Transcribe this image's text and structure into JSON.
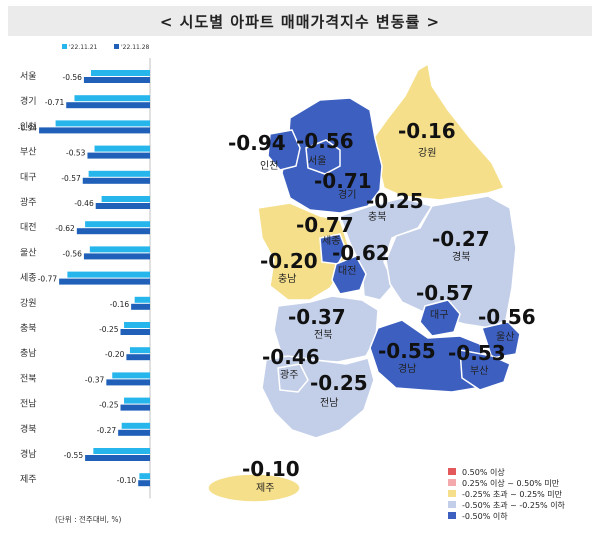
{
  "title": "< 시도별 아파트 매매가격지수 변동률 >",
  "chart_data": {
    "type": "bar",
    "orientation": "horizontal",
    "categories": [
      "서울",
      "경기",
      "인천",
      "부산",
      "대구",
      "광주",
      "대전",
      "울산",
      "세종",
      "강원",
      "충북",
      "충남",
      "전북",
      "전남",
      "경북",
      "경남",
      "제주"
    ],
    "series": [
      {
        "name": "'22.11.21",
        "color": "#27b6ec",
        "values": [
          -0.5,
          -0.64,
          -0.8,
          -0.47,
          -0.52,
          -0.41,
          -0.55,
          -0.51,
          -0.7,
          -0.13,
          -0.22,
          -0.17,
          -0.32,
          -0.22,
          -0.24,
          -0.48,
          -0.09
        ]
      },
      {
        "name": "'22.11.28",
        "color": "#2060b8",
        "values": [
          -0.56,
          -0.71,
          -0.94,
          -0.53,
          -0.57,
          -0.46,
          -0.62,
          -0.56,
          -0.77,
          -0.16,
          -0.25,
          -0.2,
          -0.37,
          -0.25,
          -0.27,
          -0.55,
          -0.1
        ]
      }
    ],
    "data_labels": [
      "-0.56",
      "-0.71",
      "-0.94",
      "-0.53",
      "-0.57",
      "-0.46",
      "-0.62",
      "-0.56",
      "-0.77",
      "-0.16",
      "-0.25",
      "-0.20",
      "-0.37",
      "-0.25",
      "-0.27",
      "-0.55",
      "-0.10"
    ],
    "xlim": [
      -1.0,
      0
    ],
    "footnote": "(단위 : 전주대비, %)"
  },
  "map": {
    "regions": [
      {
        "id": "seoul",
        "name": "서울",
        "value": "-0.56",
        "color": "#3c5fc0"
      },
      {
        "id": "incheon",
        "name": "인천",
        "value": "-0.94",
        "color": "#3c5fc0"
      },
      {
        "id": "gyeonggi",
        "name": "경기",
        "value": "-0.71",
        "color": "#3c5fc0"
      },
      {
        "id": "gangwon",
        "name": "강원",
        "value": "-0.16",
        "color": "#f5df8a"
      },
      {
        "id": "chungbuk",
        "name": "충북",
        "value": "-0.25",
        "color": "#c3cfe9"
      },
      {
        "id": "sejong",
        "name": "세종",
        "value": "-0.77",
        "color": "#3c5fc0"
      },
      {
        "id": "chungnam",
        "name": "충남",
        "value": "-0.20",
        "color": "#f5df8a"
      },
      {
        "id": "daejeon",
        "name": "대전",
        "value": "-0.62",
        "color": "#3c5fc0"
      },
      {
        "id": "gyeongbuk",
        "name": "경북",
        "value": "-0.27",
        "color": "#c3cfe9"
      },
      {
        "id": "daegu",
        "name": "대구",
        "value": "-0.57",
        "color": "#3c5fc0"
      },
      {
        "id": "jeonbuk",
        "name": "전북",
        "value": "-0.37",
        "color": "#c3cfe9"
      },
      {
        "id": "ulsan",
        "name": "울산",
        "value": "-0.56",
        "color": "#3c5fc0"
      },
      {
        "id": "gyeongnam",
        "name": "경남",
        "value": "-0.55",
        "color": "#3c5fc0"
      },
      {
        "id": "busan",
        "name": "부산",
        "value": "-0.53",
        "color": "#3c5fc0"
      },
      {
        "id": "gwangju",
        "name": "광주",
        "value": "-0.46",
        "color": "#c3cfe9"
      },
      {
        "id": "jeonnam",
        "name": "전남",
        "value": "-0.25",
        "color": "#c3cfe9"
      },
      {
        "id": "jeju",
        "name": "제주",
        "value": "-0.10",
        "color": "#f5df8a"
      }
    ],
    "legend": [
      {
        "label": "0.50% 이상",
        "color": "#e2585b"
      },
      {
        "label": "0.25% 이상 ~ 0.50% 미만",
        "color": "#f4a9ad"
      },
      {
        "label": "-0.25% 초과 ~ 0.25% 미만",
        "color": "#f5df8a"
      },
      {
        "label": "-0.50% 초과 ~ -0.25% 이하",
        "color": "#c3cfe9"
      },
      {
        "label": "-0.50% 이하",
        "color": "#3c5fc0"
      }
    ]
  }
}
